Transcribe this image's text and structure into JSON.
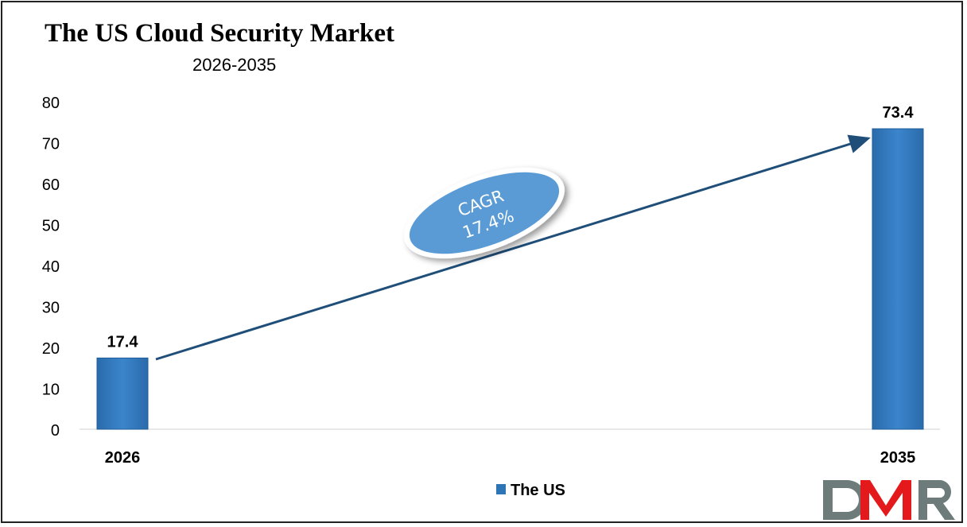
{
  "chart_data": {
    "type": "bar",
    "title": "The US Cloud Security Market",
    "subtitle": "2026-2035",
    "categories": [
      "2026",
      "2035"
    ],
    "series": [
      {
        "name": "The US",
        "values": [
          17.4,
          73.4
        ],
        "color": "#2e75b6"
      }
    ],
    "data_labels": [
      "17.4",
      "73.4"
    ],
    "ylim": [
      0,
      80
    ],
    "yticks": [
      "0",
      "10",
      "20",
      "30",
      "40",
      "50",
      "60",
      "70",
      "80"
    ],
    "grid": false,
    "legend": "bottom-center",
    "annotation": {
      "line1": "CAGR",
      "line2": "17.4%"
    }
  },
  "logo": {
    "text": "DMR",
    "colors": [
      "#6d7b7b",
      "#e3191b"
    ]
  }
}
